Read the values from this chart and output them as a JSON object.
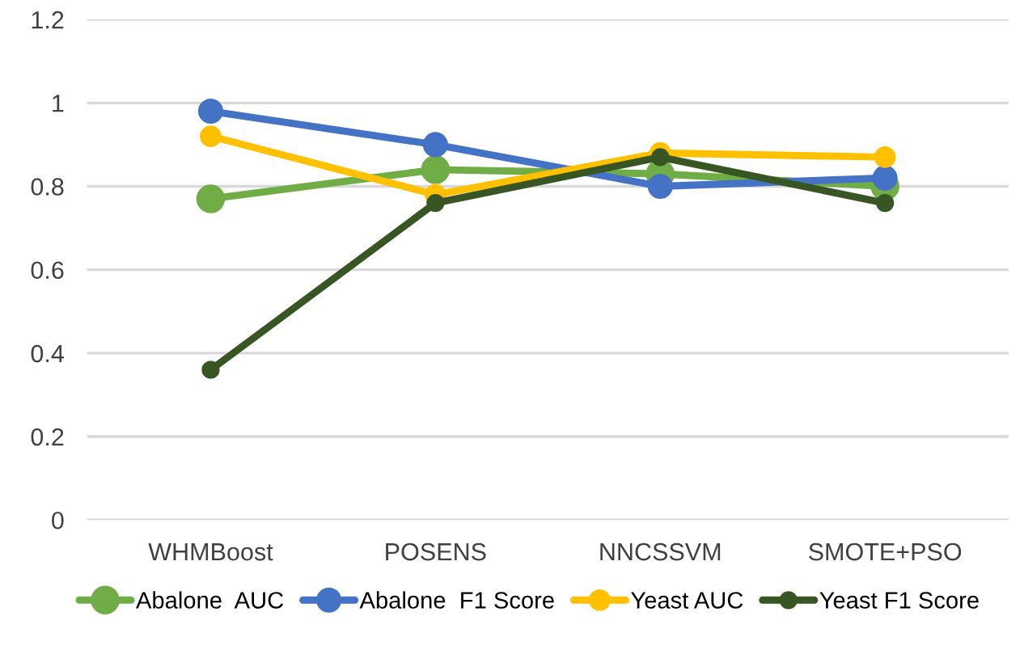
{
  "chart_data": {
    "type": "line",
    "categories": [
      "WHMBoost",
      "POSENS",
      "NNCSSVM",
      "SMOTE+PSO"
    ],
    "series": [
      {
        "name": "Abalone  AUC",
        "color": "#70ad47",
        "values": [
          0.77,
          0.84,
          0.83,
          0.8
        ]
      },
      {
        "name": "Abalone  F1 Score",
        "color": "#4472c4",
        "values": [
          0.98,
          0.9,
          0.8,
          0.82
        ]
      },
      {
        "name": "Yeast AUC",
        "color": "#ffc000",
        "values": [
          0.92,
          0.78,
          0.88,
          0.87
        ]
      },
      {
        "name": "Yeast F1 Score",
        "color": "#375623",
        "values": [
          0.36,
          0.76,
          0.87,
          0.76
        ]
      }
    ],
    "ylim": [
      0,
      1.2
    ],
    "yticks": [
      0,
      {
        "value": 0.2,
        "label": "0.2"
      },
      {
        "value": 0.4,
        "label": "0.4"
      },
      {
        "value": 0.6,
        "label": "0.6"
      },
      {
        "value": 0.8,
        "label": "0.8"
      },
      1,
      {
        "value": 1.2,
        "label": "1.2"
      }
    ],
    "grid": "y",
    "legend": "bottom",
    "marker": "circle",
    "line_style": "solid"
  }
}
